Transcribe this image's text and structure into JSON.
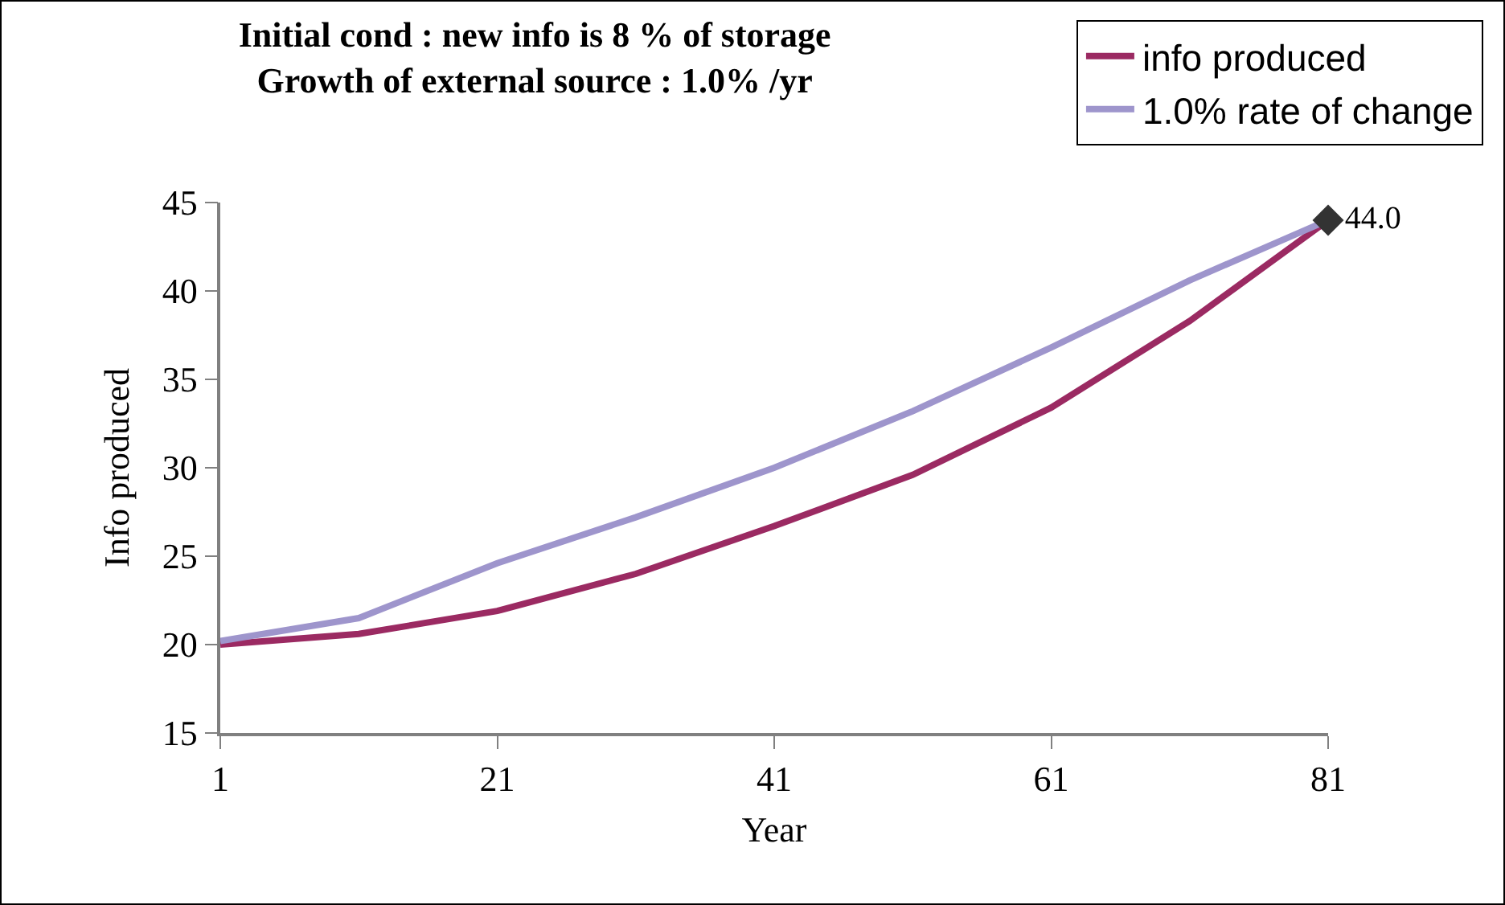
{
  "chart_data": {
    "type": "line",
    "title": "Initial cond : new info is 8 % of storage\nGrowth of external source : 1.0% /yr",
    "xlabel": "Year",
    "ylabel": "Info produced",
    "x": [
      1,
      11,
      21,
      31,
      41,
      51,
      61,
      71,
      81
    ],
    "series": [
      {
        "name": "info produced",
        "color": "#9b2a62",
        "values": [
          20.0,
          20.6,
          21.9,
          24.0,
          26.7,
          29.6,
          33.4,
          38.3,
          44.0
        ]
      },
      {
        "name": "1.0% rate of change",
        "color": "#9e95cc",
        "values": [
          20.2,
          21.5,
          24.6,
          27.2,
          30.0,
          33.2,
          36.8,
          40.6,
          44.0
        ]
      },
      {
        "type": "scatter",
        "x": [
          81
        ],
        "color": "#333333",
        "marker": "diamond",
        "values": [
          44.0
        ],
        "value_labels": [
          "44.0"
        ]
      }
    ],
    "xlim": [
      1,
      81
    ],
    "xticks": [
      1,
      21,
      41,
      61,
      81
    ],
    "ylim": [
      15,
      45
    ],
    "yticks": [
      15,
      20,
      25,
      30,
      35,
      40,
      45
    ],
    "grid": false,
    "legend": "top right",
    "marker": "none",
    "line_style": "solid"
  }
}
